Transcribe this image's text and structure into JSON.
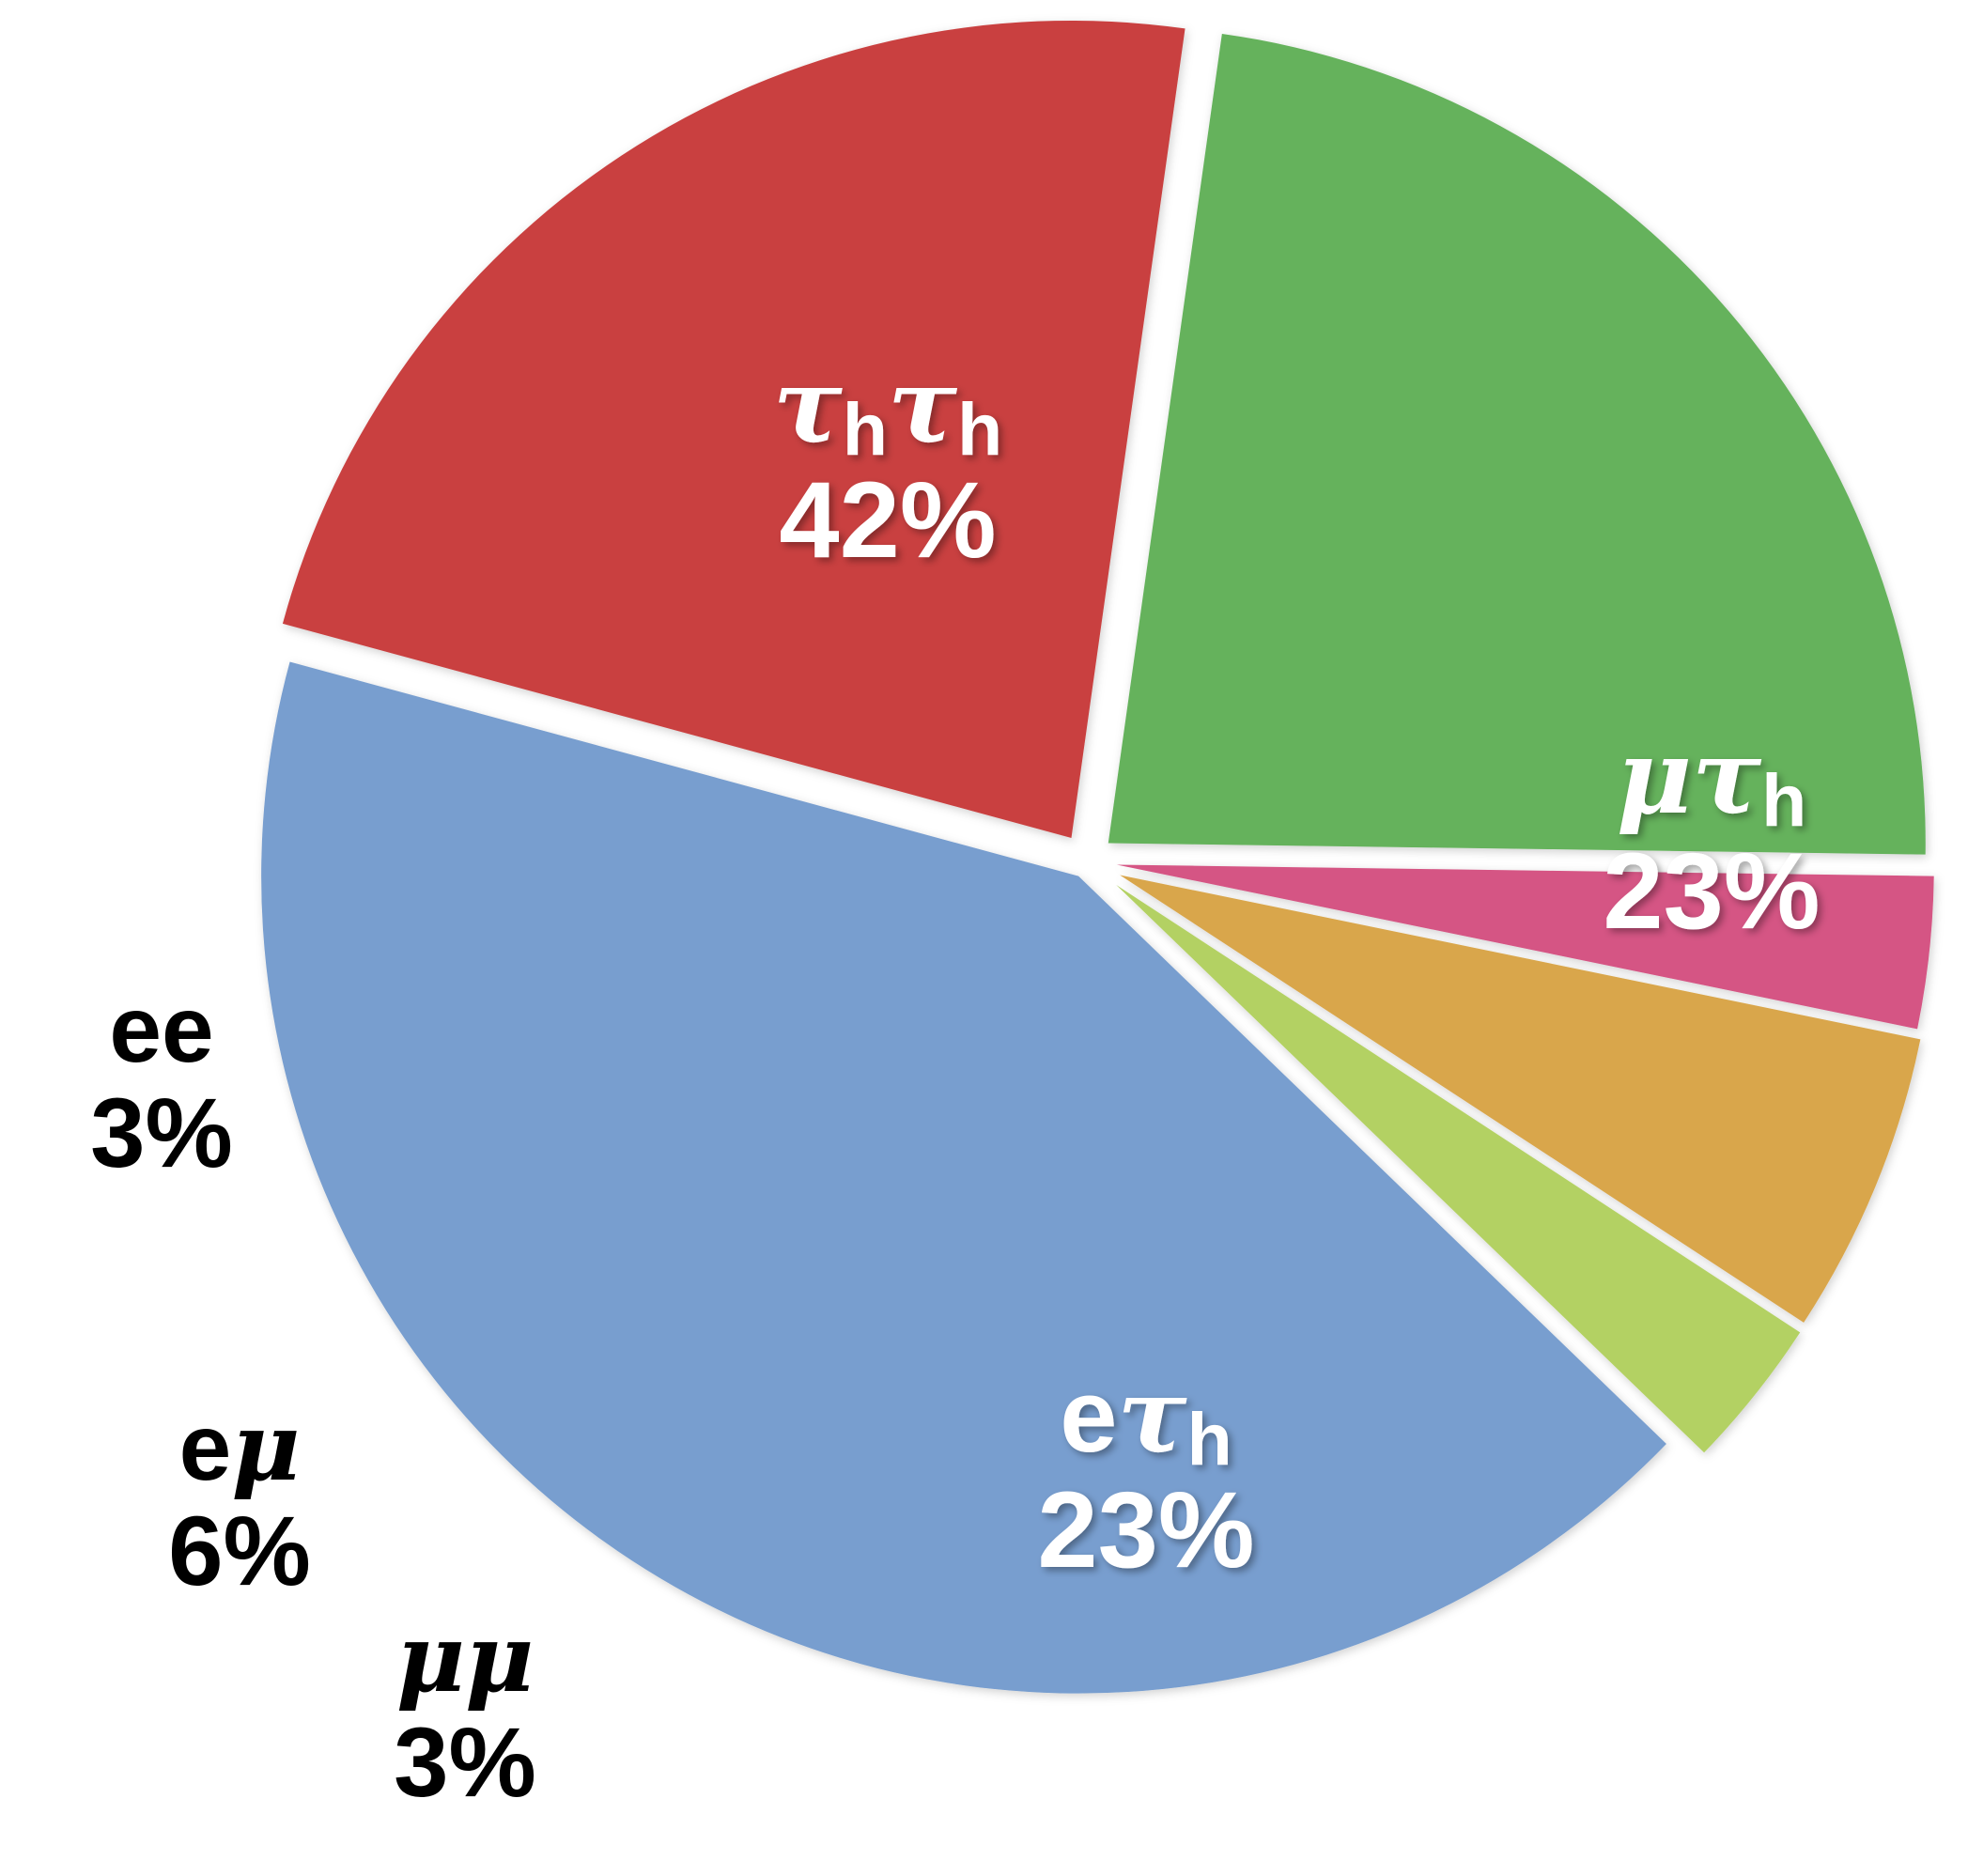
{
  "chart_data": {
    "type": "pie",
    "unit": "%",
    "slices": [
      {
        "key": "tauh-tauh",
        "name_parts": [
          {
            "t": "τ",
            "italic": true
          },
          {
            "t": "h",
            "sub": true
          },
          {
            "t": "τ",
            "italic": true
          },
          {
            "t": "h",
            "sub": true
          }
        ],
        "percent_label": "42%",
        "value": 42,
        "color": "#789ECF",
        "label_inside": true
      },
      {
        "key": "mu-tauh",
        "name_parts": [
          {
            "t": "μ",
            "italic": true
          },
          {
            "t": "τ",
            "italic": true
          },
          {
            "t": "h",
            "sub": true
          }
        ],
        "percent_label": "23%",
        "value": 23,
        "color": "#C9403F",
        "label_inside": true
      },
      {
        "key": "e-tauh",
        "name_parts": [
          {
            "t": "e"
          },
          {
            "t": "τ",
            "italic": true
          },
          {
            "t": "h",
            "sub": true
          }
        ],
        "percent_label": "23%",
        "value": 23,
        "color": "#65B25C",
        "label_inside": true
      },
      {
        "key": "mu-mu",
        "name_parts": [
          {
            "t": "μμ",
            "italic": true
          }
        ],
        "percent_label": "3%",
        "value": 3,
        "color": "#D55584",
        "label_inside": false
      },
      {
        "key": "e-mu",
        "name_parts": [
          {
            "t": "e"
          },
          {
            "t": "μ",
            "italic": true
          }
        ],
        "percent_label": "6%",
        "value": 6,
        "color": "#D9A64B",
        "label_inside": false
      },
      {
        "key": "e-e",
        "name_parts": [
          {
            "t": "ee"
          }
        ],
        "percent_label": "3%",
        "value": 3,
        "color": "#B3D163",
        "label_inside": false
      }
    ],
    "inside_label_color": "#ffffff",
    "outside_label_color": "#000000"
  }
}
